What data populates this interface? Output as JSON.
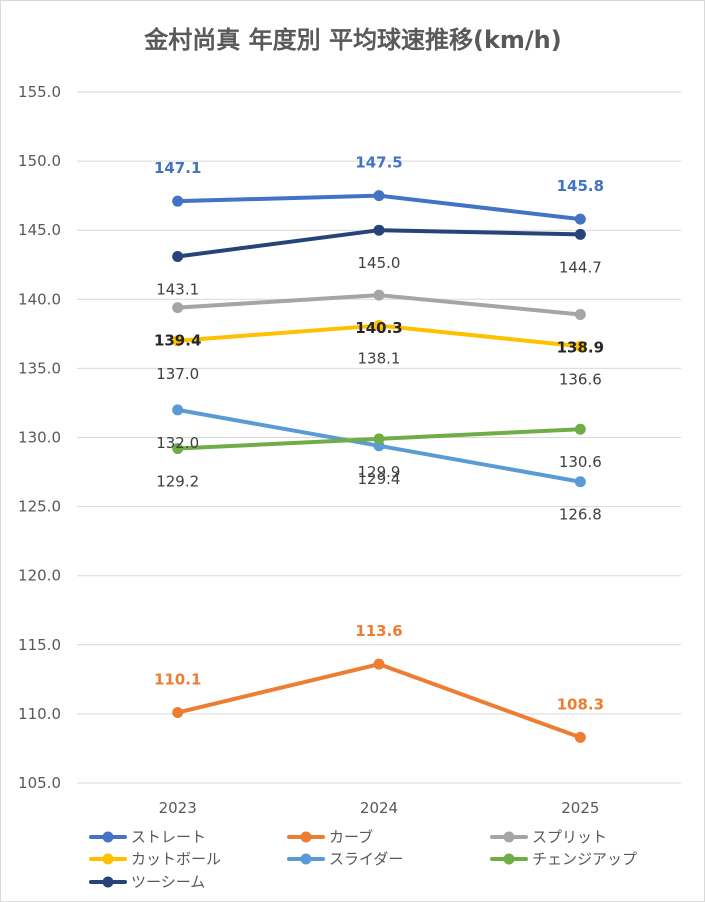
{
  "chart_data": {
    "type": "line",
    "title": "金村尚真 年度別 平均球速推移(km/h)",
    "xlabel": "",
    "ylabel": "",
    "categories": [
      "2023",
      "2024",
      "2025"
    ],
    "ylim": [
      105.0,
      155.0
    ],
    "yticks": [
      155.0,
      150.0,
      145.0,
      140.0,
      135.0,
      130.0,
      125.0,
      120.0,
      115.0,
      110.0,
      105.0
    ],
    "ytick_labels": [
      "155.0",
      "150.0",
      "145.0",
      "140.0",
      "135.0",
      "130.0",
      "125.0",
      "120.0",
      "115.0",
      "110.0",
      "105.0"
    ],
    "grid": "horizontal",
    "legend_position": "bottom",
    "series": [
      {
        "name": "ストレート",
        "values": [
          147.1,
          147.5,
          145.8
        ],
        "labels": [
          "147.1",
          "147.5",
          "145.8"
        ],
        "color": "#4472c4",
        "label_color": "#4472c4",
        "label_bold": true
      },
      {
        "name": "カーブ",
        "values": [
          110.1,
          113.6,
          108.3
        ],
        "labels": [
          "110.1",
          "113.6",
          "108.3"
        ],
        "color": "#ed7d31",
        "label_color": "#ed7d31",
        "label_bold": true
      },
      {
        "name": "スプリット",
        "values": [
          139.4,
          140.3,
          138.9
        ],
        "labels": [
          "139.4",
          "140.3",
          "138.9"
        ],
        "color": "#a5a5a5",
        "label_color": "#262626",
        "label_bold": true
      },
      {
        "name": "カットボール",
        "values": [
          137.0,
          138.1,
          136.6
        ],
        "labels": [
          "137.0",
          "138.1",
          "136.6"
        ],
        "color": "#ffc000",
        "label_color": "#404040",
        "label_bold": false
      },
      {
        "name": "スライダー",
        "values": [
          132.0,
          129.4,
          126.8
        ],
        "labels": [
          "132.0",
          "129.4",
          "126.8"
        ],
        "color": "#5b9bd5",
        "label_color": "#404040",
        "label_bold": false
      },
      {
        "name": "チェンジアップ",
        "values": [
          129.2,
          129.9,
          130.6
        ],
        "labels": [
          "129.2",
          "129.9",
          "130.6"
        ],
        "color": "#70ad47",
        "label_color": "#404040",
        "label_bold": false
      },
      {
        "name": "ツーシーム",
        "values": [
          143.1,
          145.0,
          144.7
        ],
        "labels": [
          "143.1",
          "145.0",
          "144.7"
        ],
        "color": "#264478",
        "label_color": "#404040",
        "label_bold": false
      }
    ]
  }
}
